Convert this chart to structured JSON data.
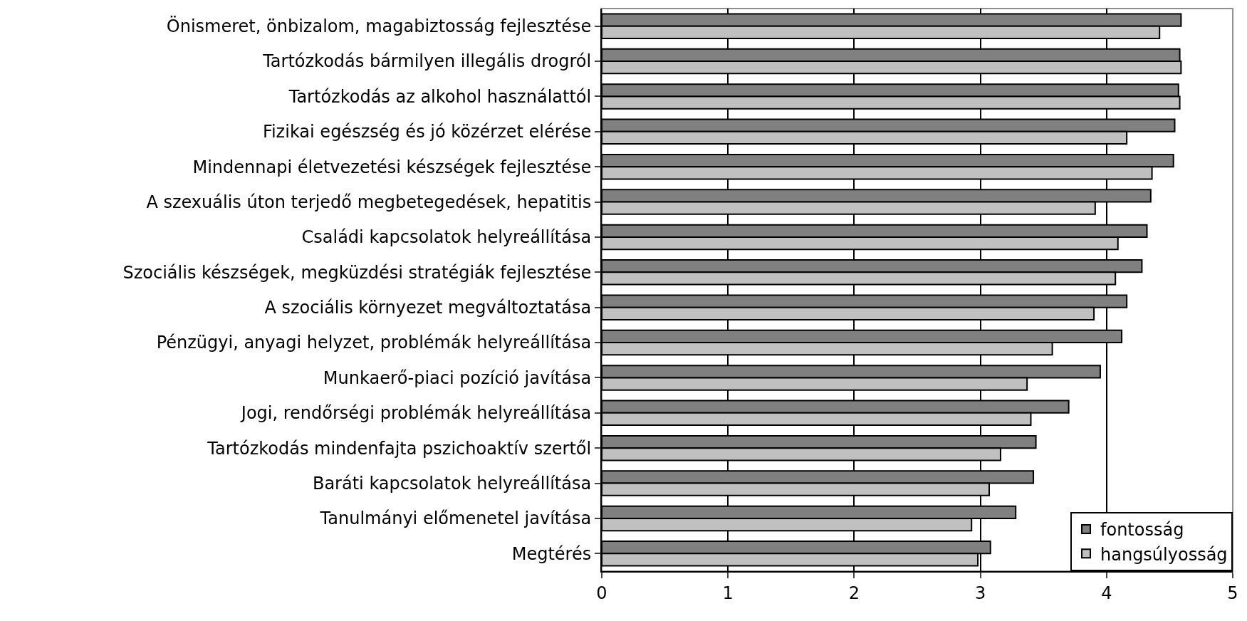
{
  "chart_data": {
    "type": "bar",
    "orientation": "horizontal",
    "categories": [
      "Önismeret, önbizalom, magabiztosság fejlesztése",
      "Tartózkodás bármilyen illegális drogról",
      "Tartózkodás az alkohol használattól",
      "Fizikai egészség és jó közérzet elérése",
      "Mindennapi életvezetési készségek fejlesztése",
      "A szexuális úton terjedő megbetegedések, hepatitis",
      "Családi kapcsolatok helyreállítása",
      "Szociális készségek, megküzdési stratégiák fejlesztése",
      "A szociális környezet megváltoztatása",
      "Pénzügyi, anyagi helyzet, problémák helyreállítása",
      "Munkaerő-piaci pozíció javítása",
      "Jogi, rendőrségi problémák helyreállítása",
      "Tartózkodás mindenfajta pszichoaktív szertől",
      "Baráti kapcsolatok helyreállítása",
      "Tanulmányi előmenetel javítása",
      "Megtérés"
    ],
    "series": [
      {
        "name": "fontosság",
        "color": "#808080",
        "values": [
          4.59,
          4.58,
          4.57,
          4.54,
          4.53,
          4.35,
          4.32,
          4.28,
          4.16,
          4.12,
          3.95,
          3.7,
          3.44,
          3.42,
          3.28,
          3.08
        ]
      },
      {
        "name": "hangsúlyosság",
        "color": "#c0c0c0",
        "values": [
          4.42,
          4.59,
          4.58,
          4.16,
          4.36,
          3.91,
          4.09,
          4.07,
          3.9,
          3.57,
          3.37,
          3.4,
          3.16,
          3.07,
          2.93,
          2.98
        ]
      }
    ],
    "xlim": [
      0,
      5
    ],
    "xticks": [
      0,
      1,
      2,
      3,
      4,
      5
    ],
    "grid": "x",
    "legend": "bottom right"
  }
}
